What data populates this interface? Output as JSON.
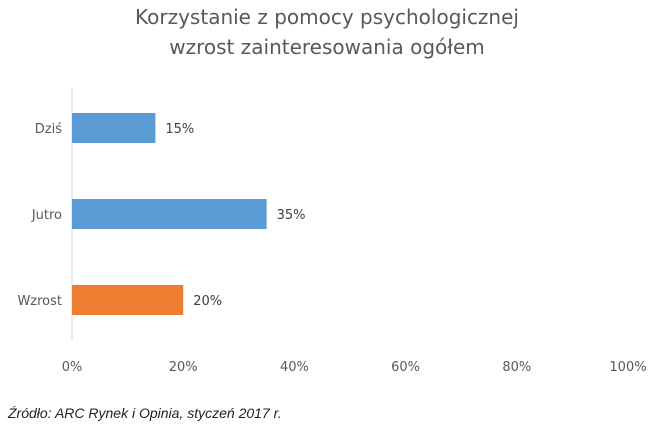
{
  "chart_data": {
    "type": "bar",
    "orientation": "horizontal",
    "title": [
      "Korzystanie z pomocy psychologicznej",
      "wzrost zainteresowania ogółem"
    ],
    "categories": [
      "Dziś",
      "Jutro",
      "Wzrost"
    ],
    "values": [
      15,
      35,
      20
    ],
    "data_labels": [
      "15%",
      "35%",
      "20%"
    ],
    "colors": [
      "#5B9BD5",
      "#5B9BD5",
      "#ED7D31"
    ],
    "xlim": [
      0,
      100
    ],
    "xticks": [
      0,
      20,
      40,
      60,
      80,
      100
    ],
    "xtick_labels": [
      "0%",
      "20%",
      "40%",
      "60%",
      "80%",
      "100%"
    ],
    "grid": false,
    "legend": "none"
  },
  "source": "Źródło: ARC Rynek i Opinia, styczeń 2017 r."
}
